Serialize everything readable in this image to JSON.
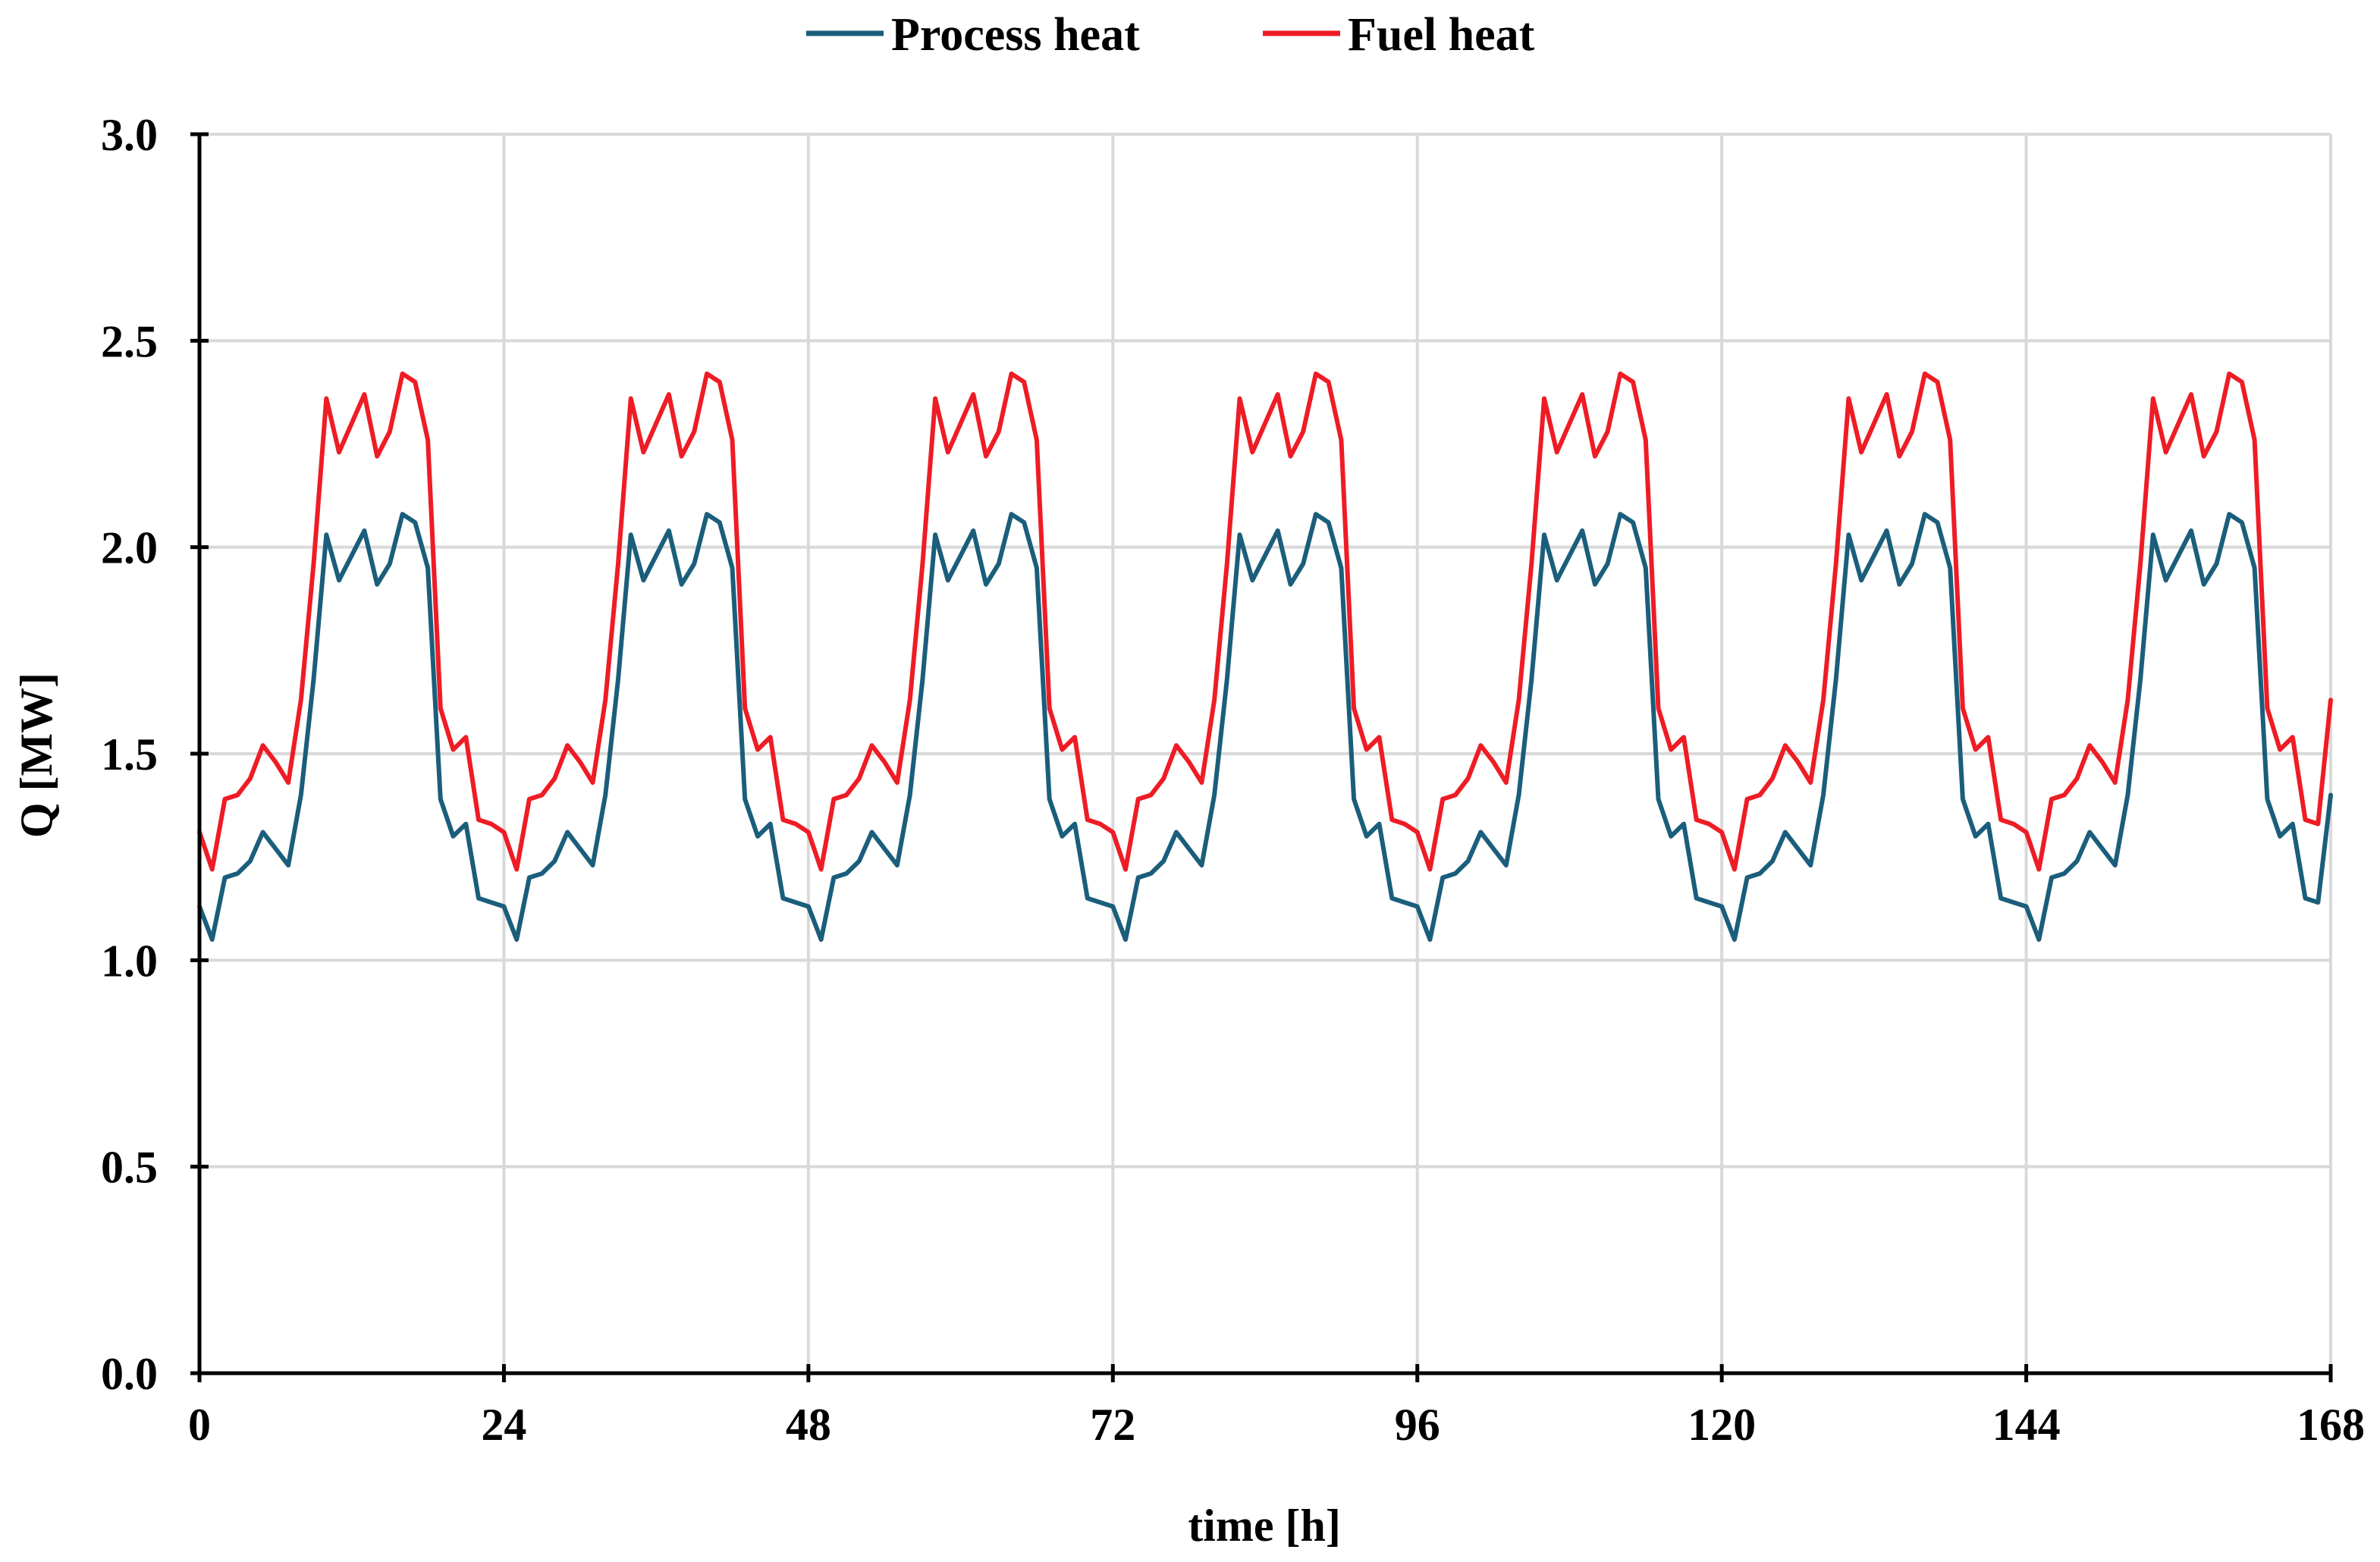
{
  "chart_data": {
    "type": "line",
    "title": "",
    "xlabel": "time [h]",
    "ylabel": "Q [MW]",
    "xlim": [
      0,
      168
    ],
    "ylim": [
      0,
      3
    ],
    "xticks": [
      0,
      24,
      48,
      72,
      96,
      120,
      144,
      168
    ],
    "xtick_labels": [
      "0",
      "24",
      "48",
      "72",
      "96",
      "120",
      "144",
      "168"
    ],
    "yticks": [
      0,
      0.5,
      1,
      1.5,
      2,
      2.5,
      3
    ],
    "ytick_labels": [
      "0.0",
      "0.5",
      "1.0",
      "1.5",
      "2.0",
      "2.5",
      "3.0"
    ],
    "grid": true,
    "legend_position": "top-center",
    "daily_hours": [
      0,
      1,
      2,
      3,
      4,
      5,
      6,
      7,
      8,
      9,
      10,
      11,
      12,
      13,
      14,
      15,
      16,
      17,
      18,
      19,
      20,
      21,
      22,
      23
    ],
    "repeat_days": 7,
    "series": [
      {
        "name": "Process heat",
        "color": "#1b5e7b",
        "daily_values": [
          1.13,
          1.05,
          1.2,
          1.21,
          1.24,
          1.31,
          1.27,
          1.23,
          1.4,
          1.68,
          2.03,
          1.92,
          1.98,
          2.04,
          1.91,
          1.96,
          2.08,
          2.06,
          1.95,
          1.39,
          1.3,
          1.33,
          1.15,
          1.14
        ],
        "final_value": 1.4
      },
      {
        "name": "Fuel heat",
        "color": "#ee1c25",
        "daily_values": [
          1.31,
          1.22,
          1.39,
          1.4,
          1.44,
          1.52,
          1.48,
          1.43,
          1.63,
          1.96,
          2.36,
          2.23,
          2.3,
          2.37,
          2.22,
          2.28,
          2.42,
          2.4,
          2.26,
          1.61,
          1.51,
          1.54,
          1.34,
          1.33
        ],
        "final_value": 1.63
      }
    ]
  }
}
